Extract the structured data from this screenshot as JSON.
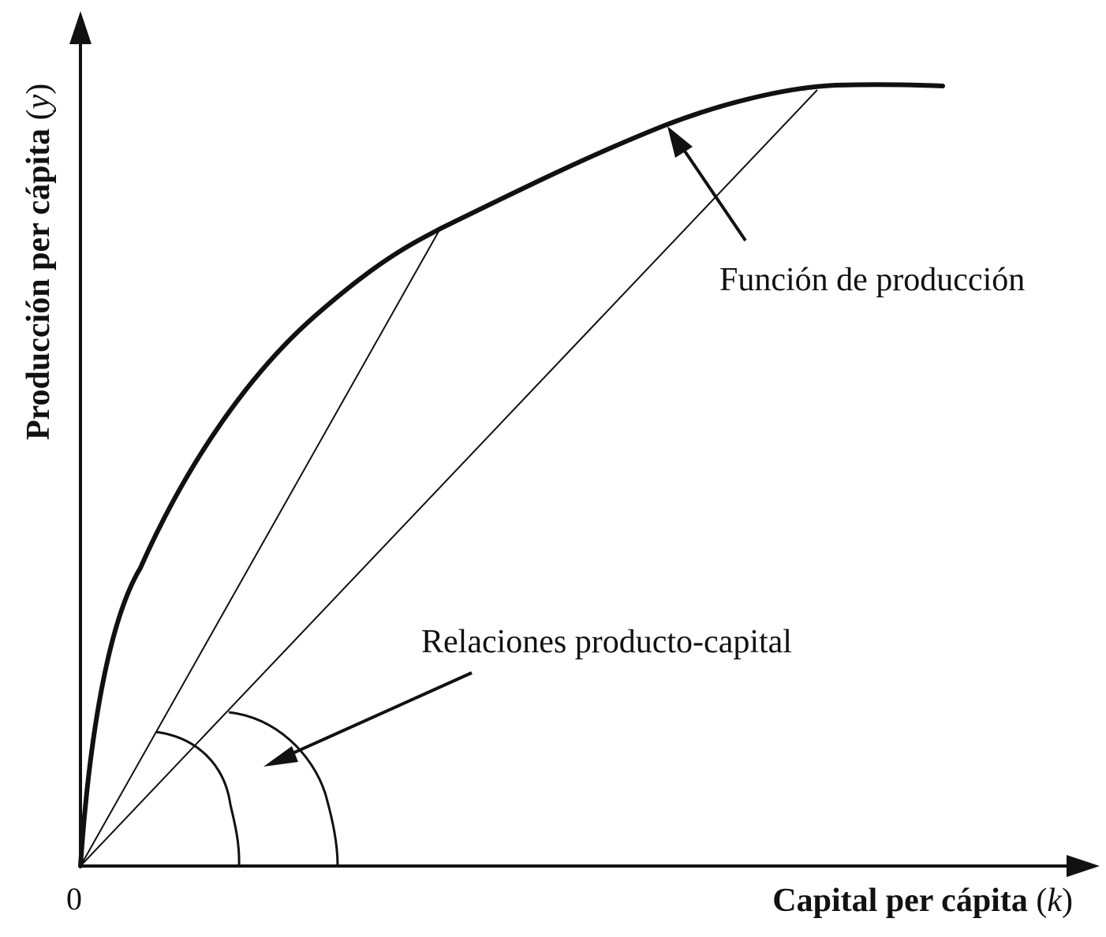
{
  "diagram": {
    "origin_label": "0",
    "y_axis": {
      "label": "Producción per cápita",
      "var_open": " (",
      "var": "y",
      "var_close": ")"
    },
    "x_axis": {
      "label": "Capital per cápita",
      "var_open": " (",
      "var": "k",
      "var_close": ")"
    },
    "annotations": {
      "production_function": "Función de producción",
      "output_capital_ratios": "Relaciones producto-capital"
    },
    "colors": {
      "ink": "#111111",
      "background": "#ffffff"
    }
  }
}
